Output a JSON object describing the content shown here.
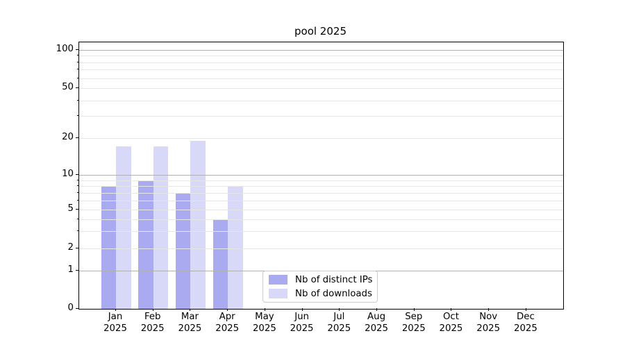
{
  "title": "pool 2025",
  "chart_data": {
    "type": "bar",
    "title": "pool 2025",
    "xlabel": "",
    "ylabel": "",
    "x_tick_year": "2025",
    "categories": [
      "Jan",
      "Feb",
      "Mar",
      "Apr",
      "May",
      "Jun",
      "Jul",
      "Aug",
      "Sep",
      "Oct",
      "Nov",
      "Dec"
    ],
    "series": [
      {
        "name": "Nb of distinct IPs",
        "color": "#aaaaf0",
        "values": [
          8,
          9,
          7,
          4,
          0,
          0,
          0,
          0,
          0,
          0,
          0,
          0
        ]
      },
      {
        "name": "Nb of downloads",
        "color": "#d8d8f8",
        "values": [
          17,
          17,
          19,
          8,
          0,
          0,
          0,
          0,
          0,
          0,
          0,
          0
        ]
      }
    ],
    "yscale": "symlog-like",
    "ylim": [
      0,
      115
    ],
    "yticks_labeled": [
      0,
      1,
      2,
      5,
      10,
      20,
      50,
      100
    ],
    "yticks_major_grid": [
      1,
      10,
      100
    ],
    "yticks_minor_grid": [
      2,
      3,
      4,
      5,
      6,
      7,
      8,
      9,
      20,
      30,
      40,
      50,
      60,
      70,
      80,
      90
    ],
    "grid": "on, drawn above bars",
    "legend_position": "lower center, inside axes"
  },
  "legend": {
    "items": [
      {
        "label": "Nb of distinct IPs"
      },
      {
        "label": "Nb of downloads"
      }
    ]
  },
  "colors": {
    "distinct_ips_bar": "#aaaaf0",
    "downloads_bar": "#d8d8f8",
    "major_grid": "#b0b0b0",
    "minor_grid": "#e7e7e7",
    "axis": "#000000",
    "legend_border": "#cccccc",
    "background": "#ffffff"
  }
}
